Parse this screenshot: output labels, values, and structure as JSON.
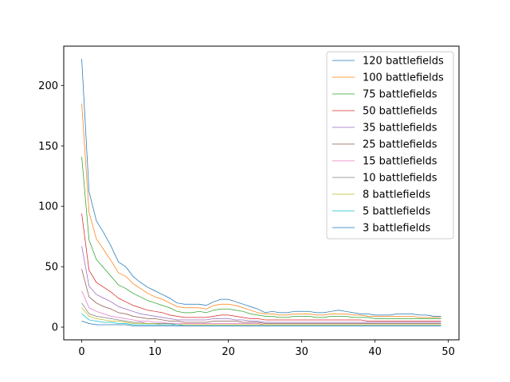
{
  "chart_data": {
    "type": "line",
    "title": "",
    "xlabel": "",
    "ylabel": "",
    "xlim": [
      -2.45,
      51.45
    ],
    "ylim": [
      -10.5,
      232.5
    ],
    "x_ticks": [
      0,
      10,
      20,
      30,
      40,
      50
    ],
    "y_ticks": [
      0,
      50,
      100,
      150,
      200
    ],
    "grid": false,
    "legend_position": "top-right",
    "x": [
      0,
      1,
      2,
      3,
      4,
      5,
      6,
      7,
      8,
      9,
      10,
      11,
      12,
      13,
      14,
      15,
      16,
      17,
      18,
      19,
      20,
      21,
      22,
      23,
      24,
      25,
      26,
      27,
      28,
      29,
      30,
      31,
      32,
      33,
      34,
      35,
      36,
      37,
      38,
      39,
      40,
      41,
      42,
      43,
      44,
      45,
      46,
      47,
      48,
      49
    ],
    "series": [
      {
        "name": "120 battlefields",
        "color": "#1f77b4",
        "values": [
          222,
          112,
          88,
          78,
          67,
          54,
          50,
          42,
          37,
          33,
          30,
          27,
          24,
          20,
          19,
          19,
          19,
          18,
          21,
          23,
          23,
          21,
          19,
          17,
          15,
          12,
          13,
          12,
          12,
          13,
          13,
          13,
          12,
          12,
          13,
          14,
          13,
          12,
          11,
          11,
          10,
          10,
          10,
          11,
          11,
          11,
          10,
          10,
          9,
          9
        ]
      },
      {
        "name": "100 battlefields",
        "color": "#ff7f0e",
        "values": [
          185,
          95,
          73,
          64,
          55,
          45,
          42,
          36,
          32,
          28,
          25,
          23,
          20,
          17,
          16,
          16,
          16,
          15,
          18,
          19,
          19,
          18,
          16,
          14,
          12,
          11,
          11,
          10,
          10,
          11,
          11,
          11,
          10,
          10,
          11,
          11,
          11,
          10,
          10,
          9,
          9,
          9,
          9,
          9,
          9,
          9,
          8,
          8,
          8,
          8
        ]
      },
      {
        "name": "75 battlefields",
        "color": "#2ca02c",
        "values": [
          141,
          72,
          56,
          49,
          42,
          35,
          32,
          28,
          25,
          22,
          20,
          18,
          16,
          13,
          12,
          12,
          13,
          12,
          14,
          15,
          15,
          14,
          13,
          11,
          10,
          9,
          9,
          8,
          8,
          9,
          9,
          9,
          8,
          8,
          9,
          9,
          9,
          8,
          8,
          8,
          7,
          7,
          7,
          7,
          7,
          7,
          7,
          7,
          7,
          7
        ]
      },
      {
        "name": "50 battlefields",
        "color": "#d62728",
        "values": [
          94,
          47,
          37,
          33,
          29,
          24,
          21,
          18,
          16,
          14,
          13,
          12,
          10,
          9,
          8,
          8,
          8,
          8,
          9,
          10,
          10,
          9,
          8,
          7,
          7,
          6,
          6,
          6,
          6,
          6,
          6,
          6,
          6,
          6,
          6,
          6,
          6,
          6,
          6,
          5,
          5,
          5,
          5,
          5,
          5,
          5,
          5,
          5,
          5,
          5
        ]
      },
      {
        "name": "35 battlefields",
        "color": "#9467bd",
        "values": [
          67,
          34,
          27,
          24,
          21,
          17,
          15,
          13,
          11,
          10,
          9,
          8,
          7,
          6,
          6,
          6,
          6,
          6,
          7,
          7,
          7,
          6,
          6,
          5,
          5,
          4,
          4,
          4,
          4,
          4,
          4,
          4,
          4,
          4,
          4,
          4,
          4,
          4,
          4,
          4,
          4,
          4,
          4,
          4,
          4,
          4,
          4,
          4,
          4,
          4
        ]
      },
      {
        "name": "25 battlefields",
        "color": "#8c564b",
        "values": [
          48,
          25,
          20,
          17,
          15,
          12,
          11,
          9,
          8,
          7,
          7,
          6,
          5,
          5,
          4,
          4,
          4,
          4,
          5,
          5,
          5,
          5,
          4,
          4,
          4,
          3,
          3,
          3,
          3,
          3,
          3,
          3,
          3,
          3,
          3,
          3,
          3,
          3,
          3,
          3,
          3,
          3,
          3,
          3,
          3,
          3,
          3,
          3,
          3,
          3
        ]
      },
      {
        "name": "15 battlefields",
        "color": "#e377c2",
        "values": [
          30,
          16,
          13,
          11,
          9,
          8,
          7,
          6,
          5,
          5,
          4,
          4,
          3,
          3,
          3,
          3,
          3,
          3,
          3,
          3,
          3,
          3,
          3,
          3,
          3,
          2,
          2,
          2,
          2,
          2,
          2,
          2,
          2,
          2,
          2,
          2,
          2,
          2,
          2,
          2,
          2,
          2,
          2,
          2,
          2,
          2,
          2,
          2,
          2,
          2
        ]
      },
      {
        "name": "10 battlefields",
        "color": "#7f7f7f",
        "values": [
          20,
          11,
          9,
          8,
          7,
          6,
          5,
          4,
          4,
          3,
          3,
          3,
          3,
          2,
          2,
          2,
          2,
          2,
          2,
          2,
          2,
          2,
          2,
          2,
          2,
          2,
          2,
          2,
          2,
          2,
          2,
          2,
          2,
          2,
          2,
          2,
          2,
          2,
          2,
          2,
          2,
          2,
          2,
          2,
          2,
          2,
          2,
          2,
          2,
          2
        ]
      },
      {
        "name": "8 battlefields",
        "color": "#bcbd22",
        "values": [
          16,
          9,
          7,
          6,
          5,
          5,
          4,
          3,
          3,
          3,
          3,
          2,
          2,
          2,
          2,
          2,
          2,
          2,
          2,
          2,
          2,
          2,
          2,
          2,
          2,
          2,
          2,
          2,
          2,
          2,
          2,
          2,
          2,
          2,
          2,
          2,
          2,
          2,
          2,
          2,
          2,
          2,
          2,
          2,
          2,
          2,
          2,
          2,
          2,
          2
        ]
      },
      {
        "name": "5 battlefields",
        "color": "#17becf",
        "values": [
          11,
          6,
          5,
          4,
          4,
          3,
          3,
          2,
          2,
          2,
          2,
          2,
          2,
          2,
          1,
          1,
          1,
          1,
          1,
          1,
          1,
          1,
          1,
          1,
          1,
          1,
          1,
          1,
          1,
          1,
          1,
          1,
          1,
          1,
          1,
          1,
          1,
          1,
          1,
          1,
          1,
          1,
          1,
          1,
          1,
          1,
          1,
          1,
          1,
          1
        ]
      },
      {
        "name": "3 battlefields",
        "color": "#1f77b4",
        "values": [
          5,
          3,
          2,
          2,
          2,
          2,
          2,
          1,
          1,
          1,
          1,
          1,
          1,
          1,
          1,
          1,
          1,
          1,
          1,
          1,
          1,
          1,
          1,
          1,
          1,
          1,
          1,
          1,
          1,
          1,
          1,
          1,
          1,
          1,
          1,
          1,
          1,
          1,
          1,
          1,
          1,
          1,
          1,
          1,
          1,
          1,
          1,
          1,
          1,
          1
        ]
      }
    ]
  }
}
